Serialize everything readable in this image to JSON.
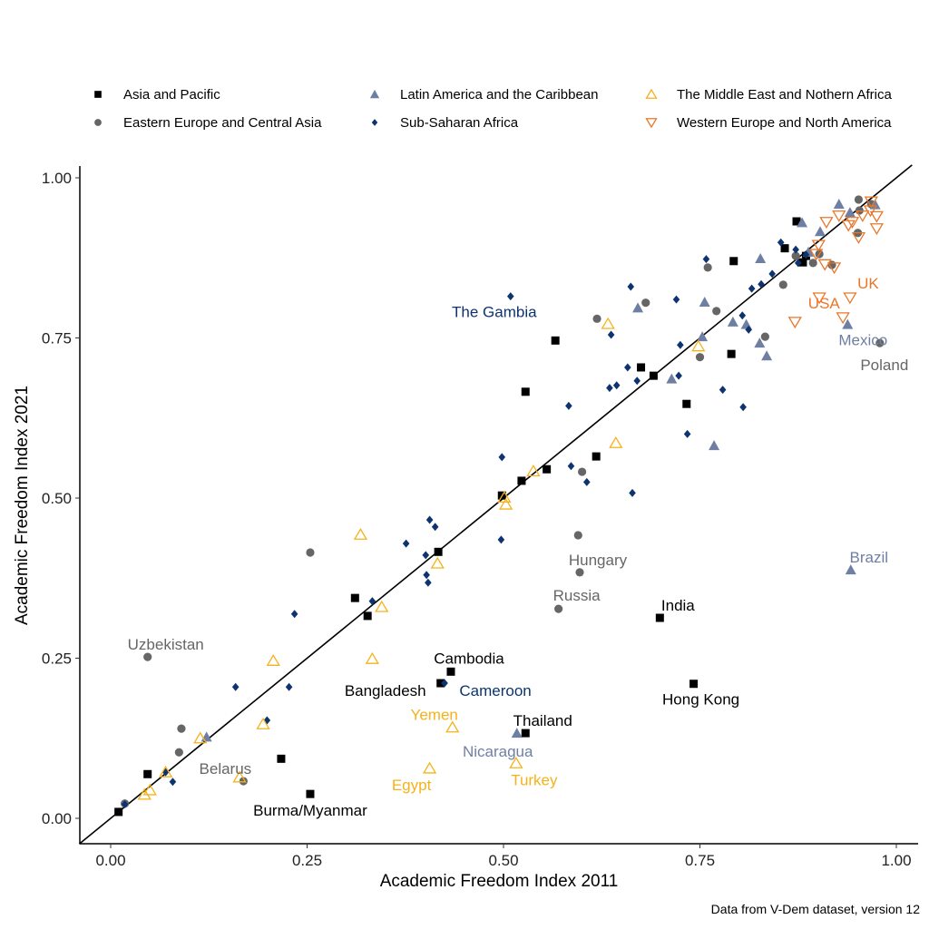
{
  "chart_data": {
    "type": "scatter",
    "xlabel": "Academic Freedom Index 2011",
    "ylabel": "Academic Freedom Index 2021",
    "caption": "Data from V-Dem dataset, version 12",
    "xlim": [
      -0.04,
      1.03
    ],
    "ylim": [
      -0.04,
      1.02
    ],
    "xticks": [
      "0.00",
      "0.25",
      "0.50",
      "0.75",
      "1.00"
    ],
    "yticks": [
      "0.00",
      "0.25",
      "0.50",
      "0.75",
      "1.00"
    ],
    "grid": false,
    "legend_position": "top",
    "reference_line": "y = x",
    "series": [
      {
        "name": "Asia and Pacific",
        "marker": "filled-square",
        "color": "#000000",
        "points": [
          {
            "x": 0.01,
            "y": 0.01
          },
          {
            "x": 0.047,
            "y": 0.069
          },
          {
            "x": 0.217,
            "y": 0.093
          },
          {
            "x": 0.311,
            "y": 0.344
          },
          {
            "x": 0.327,
            "y": 0.316
          },
          {
            "x": 0.417,
            "y": 0.416
          },
          {
            "x": 0.498,
            "y": 0.504
          },
          {
            "x": 0.523,
            "y": 0.527
          },
          {
            "x": 0.555,
            "y": 0.545
          },
          {
            "x": 0.618,
            "y": 0.565
          },
          {
            "x": 0.528,
            "y": 0.666
          },
          {
            "x": 0.566,
            "y": 0.746
          },
          {
            "x": 0.675,
            "y": 0.704
          },
          {
            "x": 0.691,
            "y": 0.691
          },
          {
            "x": 0.733,
            "y": 0.647
          },
          {
            "x": 0.79,
            "y": 0.725
          },
          {
            "x": 0.793,
            "y": 0.87
          },
          {
            "x": 0.858,
            "y": 0.89
          },
          {
            "x": 0.873,
            "y": 0.932
          },
          {
            "x": 0.885,
            "y": 0.878
          },
          {
            "x": 0.881,
            "y": 0.868
          },
          {
            "x": 0.699,
            "y": 0.313,
            "label": "India"
          },
          {
            "x": 0.433,
            "y": 0.229,
            "label": "Cambodia"
          },
          {
            "x": 0.42,
            "y": 0.211,
            "label": "Bangladesh"
          },
          {
            "x": 0.742,
            "y": 0.21,
            "label": "Hong Kong"
          },
          {
            "x": 0.528,
            "y": 0.133,
            "label": "Thailand"
          },
          {
            "x": 0.254,
            "y": 0.038,
            "label": "Burma/Myanmar"
          }
        ]
      },
      {
        "name": "Eastern Europe and Central Asia",
        "marker": "filled-circle",
        "color": "#666666",
        "points": [
          {
            "x": 0.254,
            "y": 0.415
          },
          {
            "x": 0.09,
            "y": 0.14
          },
          {
            "x": 0.087,
            "y": 0.103
          },
          {
            "x": 0.018,
            "y": 0.023
          },
          {
            "x": 0.595,
            "y": 0.442
          },
          {
            "x": 0.6,
            "y": 0.541
          },
          {
            "x": 0.619,
            "y": 0.78
          },
          {
            "x": 0.681,
            "y": 0.805
          },
          {
            "x": 0.76,
            "y": 0.86
          },
          {
            "x": 0.771,
            "y": 0.792
          },
          {
            "x": 0.75,
            "y": 0.72
          },
          {
            "x": 0.833,
            "y": 0.752
          },
          {
            "x": 0.856,
            "y": 0.833
          },
          {
            "x": 0.894,
            "y": 0.867
          },
          {
            "x": 0.918,
            "y": 0.864
          },
          {
            "x": 0.953,
            "y": 0.949
          },
          {
            "x": 0.952,
            "y": 0.966
          },
          {
            "x": 0.968,
            "y": 0.959
          },
          {
            "x": 0.951,
            "y": 0.914
          },
          {
            "x": 0.902,
            "y": 0.881
          },
          {
            "x": 0.872,
            "y": 0.878
          },
          {
            "x": 0.979,
            "y": 0.742,
            "label": "Poland"
          },
          {
            "x": 0.597,
            "y": 0.384,
            "label": "Hungary"
          },
          {
            "x": 0.57,
            "y": 0.327,
            "label": "Russia"
          },
          {
            "x": 0.047,
            "y": 0.252,
            "label": "Uzbekistan"
          },
          {
            "x": 0.169,
            "y": 0.058,
            "label": "Belarus"
          }
        ]
      },
      {
        "name": "Latin America and the Caribbean",
        "marker": "filled-triangle-up",
        "color": "#6f7fa3",
        "points": [
          {
            "x": 0.122,
            "y": 0.127
          },
          {
            "x": 0.671,
            "y": 0.797
          },
          {
            "x": 0.714,
            "y": 0.686
          },
          {
            "x": 0.756,
            "y": 0.806
          },
          {
            "x": 0.753,
            "y": 0.752
          },
          {
            "x": 0.768,
            "y": 0.582
          },
          {
            "x": 0.792,
            "y": 0.775
          },
          {
            "x": 0.809,
            "y": 0.771
          },
          {
            "x": 0.827,
            "y": 0.874
          },
          {
            "x": 0.826,
            "y": 0.742
          },
          {
            "x": 0.835,
            "y": 0.722
          },
          {
            "x": 0.88,
            "y": 0.93
          },
          {
            "x": 0.903,
            "y": 0.916
          },
          {
            "x": 0.927,
            "y": 0.959
          },
          {
            "x": 0.941,
            "y": 0.946
          },
          {
            "x": 0.973,
            "y": 0.958
          },
          {
            "x": 0.888,
            "y": 0.884
          },
          {
            "x": 0.938,
            "y": 0.771,
            "label": "Mexico"
          },
          {
            "x": 0.942,
            "y": 0.388,
            "label": "Brazil"
          },
          {
            "x": 0.517,
            "y": 0.133,
            "label": "Nicaragua"
          }
        ]
      },
      {
        "name": "Sub-Saharan Africa",
        "marker": "filled-diamond",
        "color": "#0d3470",
        "points": [
          {
            "x": 0.018,
            "y": 0.022
          },
          {
            "x": 0.07,
            "y": 0.072
          },
          {
            "x": 0.079,
            "y": 0.057
          },
          {
            "x": 0.159,
            "y": 0.205
          },
          {
            "x": 0.199,
            "y": 0.153
          },
          {
            "x": 0.227,
            "y": 0.205
          },
          {
            "x": 0.234,
            "y": 0.319
          },
          {
            "x": 0.333,
            "y": 0.339
          },
          {
            "x": 0.376,
            "y": 0.429
          },
          {
            "x": 0.401,
            "y": 0.411
          },
          {
            "x": 0.406,
            "y": 0.466
          },
          {
            "x": 0.413,
            "y": 0.455
          },
          {
            "x": 0.402,
            "y": 0.38
          },
          {
            "x": 0.404,
            "y": 0.368
          },
          {
            "x": 0.498,
            "y": 0.564
          },
          {
            "x": 0.497,
            "y": 0.435
          },
          {
            "x": 0.583,
            "y": 0.644
          },
          {
            "x": 0.586,
            "y": 0.55
          },
          {
            "x": 0.606,
            "y": 0.525
          },
          {
            "x": 0.635,
            "y": 0.672
          },
          {
            "x": 0.637,
            "y": 0.755
          },
          {
            "x": 0.644,
            "y": 0.676
          },
          {
            "x": 0.658,
            "y": 0.704
          },
          {
            "x": 0.662,
            "y": 0.83
          },
          {
            "x": 0.664,
            "y": 0.508
          },
          {
            "x": 0.67,
            "y": 0.683
          },
          {
            "x": 0.72,
            "y": 0.81
          },
          {
            "x": 0.725,
            "y": 0.739
          },
          {
            "x": 0.723,
            "y": 0.691
          },
          {
            "x": 0.734,
            "y": 0.6
          },
          {
            "x": 0.758,
            "y": 0.873
          },
          {
            "x": 0.779,
            "y": 0.669
          },
          {
            "x": 0.804,
            "y": 0.785
          },
          {
            "x": 0.805,
            "y": 0.642
          },
          {
            "x": 0.812,
            "y": 0.763
          },
          {
            "x": 0.816,
            "y": 0.827
          },
          {
            "x": 0.828,
            "y": 0.834
          },
          {
            "x": 0.842,
            "y": 0.85
          },
          {
            "x": 0.853,
            "y": 0.899
          },
          {
            "x": 0.872,
            "y": 0.888
          },
          {
            "x": 0.875,
            "y": 0.867
          },
          {
            "x": 0.885,
            "y": 0.88
          },
          {
            "x": 0.509,
            "y": 0.815,
            "label": "The Gambia"
          },
          {
            "x": 0.425,
            "y": 0.211,
            "label": "Cameroon"
          }
        ]
      },
      {
        "name": "The Middle East and Nothern Africa",
        "marker": "open-triangle-up",
        "color": "#f5b21a",
        "points": [
          {
            "x": 0.318,
            "y": 0.443
          },
          {
            "x": 0.207,
            "y": 0.246
          },
          {
            "x": 0.333,
            "y": 0.249
          },
          {
            "x": 0.345,
            "y": 0.33
          },
          {
            "x": 0.416,
            "y": 0.398
          },
          {
            "x": 0.501,
            "y": 0.501
          },
          {
            "x": 0.503,
            "y": 0.49
          },
          {
            "x": 0.538,
            "y": 0.542
          },
          {
            "x": 0.643,
            "y": 0.586
          },
          {
            "x": 0.633,
            "y": 0.772
          },
          {
            "x": 0.748,
            "y": 0.737
          },
          {
            "x": 0.194,
            "y": 0.147
          },
          {
            "x": 0.114,
            "y": 0.125
          },
          {
            "x": 0.164,
            "y": 0.064
          },
          {
            "x": 0.07,
            "y": 0.072
          },
          {
            "x": 0.05,
            "y": 0.044
          },
          {
            "x": 0.043,
            "y": 0.037
          },
          {
            "x": 0.435,
            "y": 0.142,
            "label": "Yemen"
          },
          {
            "x": 0.516,
            "y": 0.086,
            "label": "Turkey"
          },
          {
            "x": 0.406,
            "y": 0.078,
            "label": "Egypt"
          }
        ]
      },
      {
        "name": "Western Europe and North America",
        "marker": "open-triangle-down",
        "color": "#e8772a",
        "points": [
          {
            "x": 0.902,
            "y": 0.813
          },
          {
            "x": 0.909,
            "y": 0.865
          },
          {
            "x": 0.921,
            "y": 0.86
          },
          {
            "x": 0.932,
            "y": 0.782
          },
          {
            "x": 0.944,
            "y": 0.931
          },
          {
            "x": 0.957,
            "y": 0.941
          },
          {
            "x": 0.968,
            "y": 0.963
          },
          {
            "x": 0.975,
            "y": 0.94
          },
          {
            "x": 0.975,
            "y": 0.921
          },
          {
            "x": 0.967,
            "y": 0.949
          },
          {
            "x": 0.939,
            "y": 0.926
          },
          {
            "x": 0.911,
            "y": 0.931
          },
          {
            "x": 0.927,
            "y": 0.941
          },
          {
            "x": 0.952,
            "y": 0.907
          },
          {
            "x": 0.901,
            "y": 0.895
          },
          {
            "x": 0.898,
            "y": 0.881
          },
          {
            "x": 0.941,
            "y": 0.813,
            "label": "UK"
          },
          {
            "x": 0.871,
            "y": 0.775,
            "label": "USA"
          }
        ]
      }
    ]
  }
}
